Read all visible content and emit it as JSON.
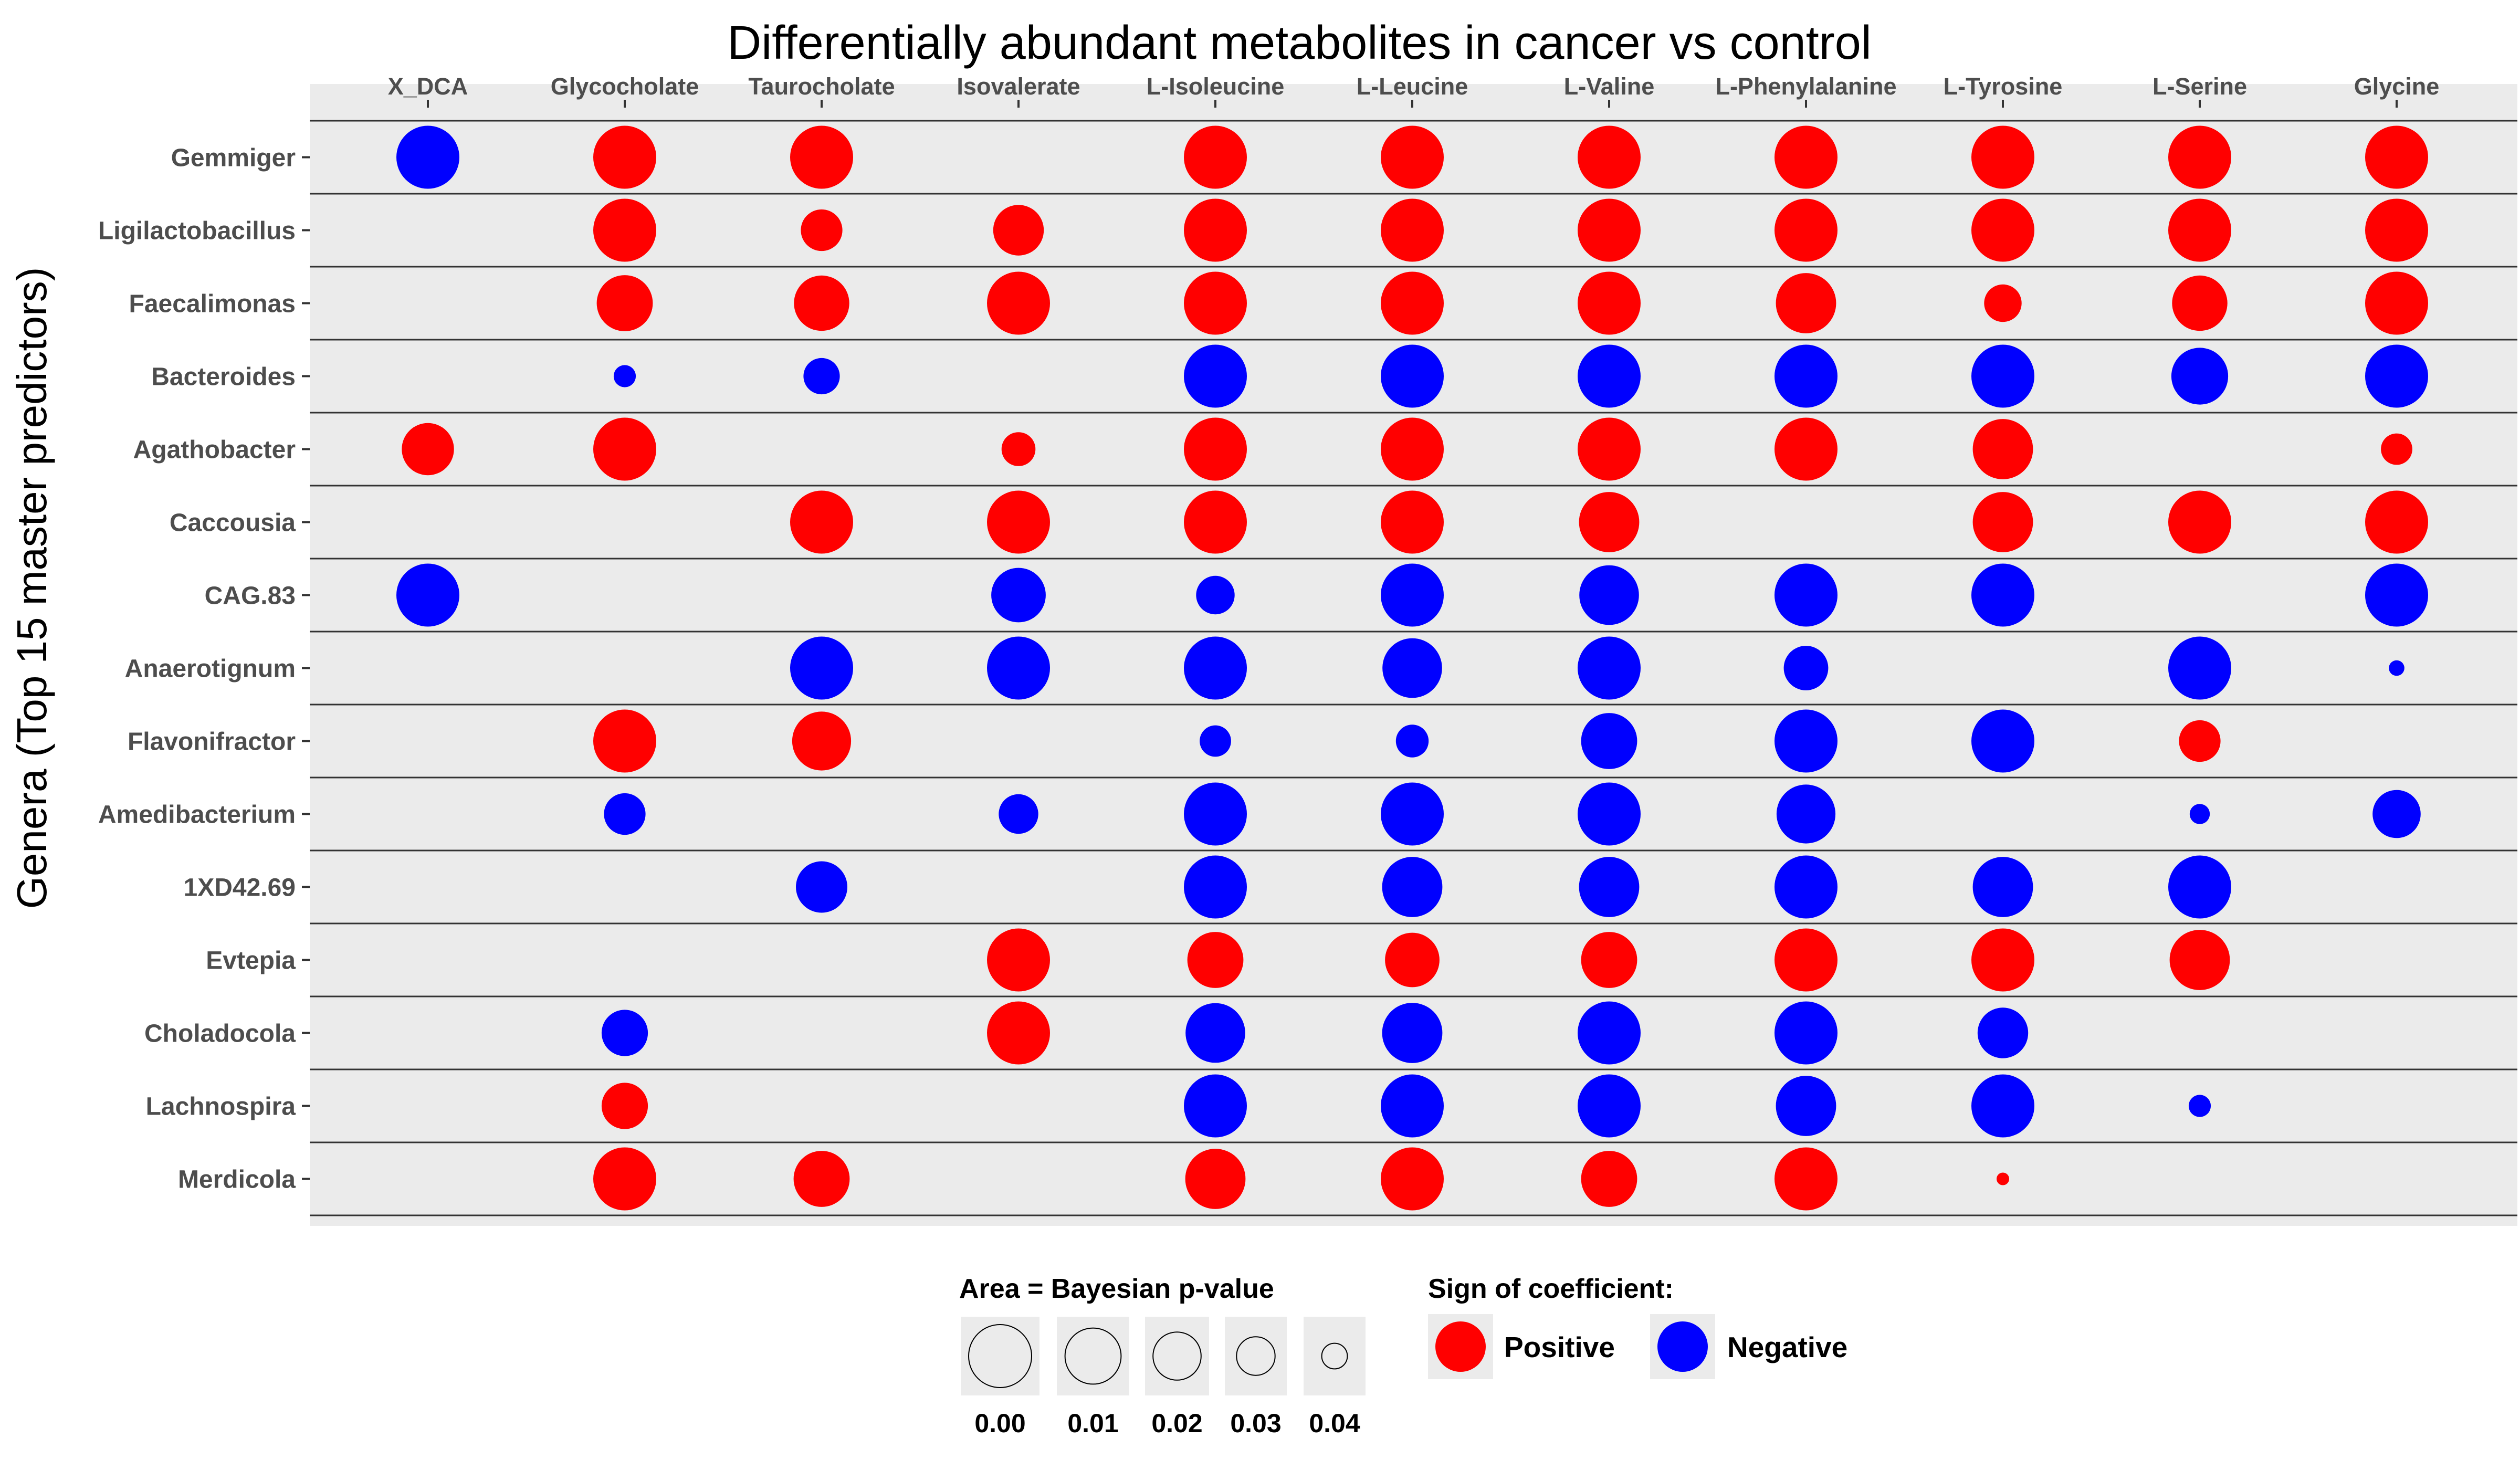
{
  "chart_data": {
    "type": "scatter",
    "title": "Differentially abundant metabolites in cancer vs control",
    "ylabel": "Genera (Top 15 master predictors)",
    "xlabel": "",
    "x_position": "top",
    "grid": true,
    "legend_placement": "bottom",
    "colors": {
      "positive": "#ff0000",
      "negative": "#0000ff",
      "panel": "#ebebeb",
      "rule": "#333333",
      "label": "#4d4d4d"
    },
    "columns": [
      "X_DCA",
      "Glycocholate",
      "Taurocholate",
      "Isovalerate",
      "L-Isoleucine",
      "L-Leucine",
      "L-Valine",
      "L-Phenylalanine",
      "L-Tyrosine",
      "L-Serine",
      "Glycine"
    ],
    "rows": [
      "Gemmiger",
      "Ligilactobacillus",
      "Faecalimonas",
      "Bacteroides",
      "Agathobacter",
      "Caccousia",
      "CAG.83",
      "Anaerotignum",
      "Flavonifractor",
      "Amedibacterium",
      "1XD42.69",
      "Evtepia",
      "Choladocola",
      "Lachnospira",
      "Merdicola"
    ],
    "size_legend": {
      "title": "Area = Bayesian p-value",
      "breaks": [
        0.0,
        0.01,
        0.02,
        0.03,
        0.04
      ],
      "labels": [
        "0.00",
        "0.01",
        "0.02",
        "0.03",
        "0.04"
      ]
    },
    "color_legend": {
      "title": "Sign of coefficient:",
      "items": [
        {
          "label": "Positive",
          "sign": "positive"
        },
        {
          "label": "Negative",
          "sign": "negative"
        }
      ]
    },
    "points": [
      {
        "row": "Gemmiger",
        "col": "X_DCA",
        "sign": "negative",
        "p": 0.0
      },
      {
        "row": "Gemmiger",
        "col": "Glycocholate",
        "sign": "positive",
        "p": 0.0
      },
      {
        "row": "Gemmiger",
        "col": "Taurocholate",
        "sign": "positive",
        "p": 0.0
      },
      {
        "row": "Gemmiger",
        "col": "L-Isoleucine",
        "sign": "positive",
        "p": 0.0
      },
      {
        "row": "Gemmiger",
        "col": "L-Leucine",
        "sign": "positive",
        "p": 0.0
      },
      {
        "row": "Gemmiger",
        "col": "L-Valine",
        "sign": "positive",
        "p": 0.0
      },
      {
        "row": "Gemmiger",
        "col": "L-Phenylalanine",
        "sign": "positive",
        "p": 0.0
      },
      {
        "row": "Gemmiger",
        "col": "L-Tyrosine",
        "sign": "positive",
        "p": 0.0
      },
      {
        "row": "Gemmiger",
        "col": "L-Serine",
        "sign": "positive",
        "p": 0.0
      },
      {
        "row": "Gemmiger",
        "col": "Glycine",
        "sign": "positive",
        "p": 0.0
      },
      {
        "row": "Ligilactobacillus",
        "col": "Glycocholate",
        "sign": "positive",
        "p": 0.0
      },
      {
        "row": "Ligilactobacillus",
        "col": "Taurocholate",
        "sign": "positive",
        "p": 0.027
      },
      {
        "row": "Ligilactobacillus",
        "col": "Isovalerate",
        "sign": "positive",
        "p": 0.017
      },
      {
        "row": "Ligilactobacillus",
        "col": "L-Isoleucine",
        "sign": "positive",
        "p": 0.0
      },
      {
        "row": "Ligilactobacillus",
        "col": "L-Leucine",
        "sign": "positive",
        "p": 0.0
      },
      {
        "row": "Ligilactobacillus",
        "col": "L-Valine",
        "sign": "positive",
        "p": 0.0
      },
      {
        "row": "Ligilactobacillus",
        "col": "L-Phenylalanine",
        "sign": "positive",
        "p": 0.0
      },
      {
        "row": "Ligilactobacillus",
        "col": "L-Tyrosine",
        "sign": "positive",
        "p": 0.0
      },
      {
        "row": "Ligilactobacillus",
        "col": "L-Serine",
        "sign": "positive",
        "p": 0.0
      },
      {
        "row": "Ligilactobacillus",
        "col": "Glycine",
        "sign": "positive",
        "p": 0.0
      },
      {
        "row": "Faecalimonas",
        "col": "Glycocholate",
        "sign": "positive",
        "p": 0.01
      },
      {
        "row": "Faecalimonas",
        "col": "Taurocholate",
        "sign": "positive",
        "p": 0.011
      },
      {
        "row": "Faecalimonas",
        "col": "Isovalerate",
        "sign": "positive",
        "p": 0.0
      },
      {
        "row": "Faecalimonas",
        "col": "L-Isoleucine",
        "sign": "positive",
        "p": 0.0
      },
      {
        "row": "Faecalimonas",
        "col": "L-Leucine",
        "sign": "positive",
        "p": 0.0
      },
      {
        "row": "Faecalimonas",
        "col": "L-Valine",
        "sign": "positive",
        "p": 0.0
      },
      {
        "row": "Faecalimonas",
        "col": "L-Phenylalanine",
        "sign": "positive",
        "p": 0.004
      },
      {
        "row": "Faecalimonas",
        "col": "L-Tyrosine",
        "sign": "positive",
        "p": 0.031
      },
      {
        "row": "Faecalimonas",
        "col": "L-Serine",
        "sign": "positive",
        "p": 0.011
      },
      {
        "row": "Faecalimonas",
        "col": "Glycine",
        "sign": "positive",
        "p": 0.0
      },
      {
        "row": "Bacteroides",
        "col": "Glycocholate",
        "sign": "negative",
        "p": 0.042
      },
      {
        "row": "Bacteroides",
        "col": "Taurocholate",
        "sign": "negative",
        "p": 0.032
      },
      {
        "row": "Bacteroides",
        "col": "L-Isoleucine",
        "sign": "negative",
        "p": 0.0
      },
      {
        "row": "Bacteroides",
        "col": "L-Leucine",
        "sign": "negative",
        "p": 0.0
      },
      {
        "row": "Bacteroides",
        "col": "L-Valine",
        "sign": "negative",
        "p": 0.0
      },
      {
        "row": "Bacteroides",
        "col": "L-Phenylalanine",
        "sign": "negative",
        "p": 0.0
      },
      {
        "row": "Bacteroides",
        "col": "L-Tyrosine",
        "sign": "negative",
        "p": 0.0
      },
      {
        "row": "Bacteroides",
        "col": "L-Serine",
        "sign": "negative",
        "p": 0.009
      },
      {
        "row": "Bacteroides",
        "col": "Glycine",
        "sign": "negative",
        "p": 0.0
      },
      {
        "row": "Agathobacter",
        "col": "X_DCA",
        "sign": "positive",
        "p": 0.015
      },
      {
        "row": "Agathobacter",
        "col": "Glycocholate",
        "sign": "positive",
        "p": 0.0
      },
      {
        "row": "Agathobacter",
        "col": "Isovalerate",
        "sign": "positive",
        "p": 0.034
      },
      {
        "row": "Agathobacter",
        "col": "L-Isoleucine",
        "sign": "positive",
        "p": 0.0
      },
      {
        "row": "Agathobacter",
        "col": "L-Leucine",
        "sign": "positive",
        "p": 0.0
      },
      {
        "row": "Agathobacter",
        "col": "L-Valine",
        "sign": "positive",
        "p": 0.0
      },
      {
        "row": "Agathobacter",
        "col": "L-Phenylalanine",
        "sign": "positive",
        "p": 0.0
      },
      {
        "row": "Agathobacter",
        "col": "L-Tyrosine",
        "sign": "positive",
        "p": 0.004
      },
      {
        "row": "Agathobacter",
        "col": "Glycine",
        "sign": "positive",
        "p": 0.036
      },
      {
        "row": "Caccousia",
        "col": "Taurocholate",
        "sign": "positive",
        "p": 0.0
      },
      {
        "row": "Caccousia",
        "col": "Isovalerate",
        "sign": "positive",
        "p": 0.0
      },
      {
        "row": "Caccousia",
        "col": "L-Isoleucine",
        "sign": "positive",
        "p": 0.0
      },
      {
        "row": "Caccousia",
        "col": "L-Leucine",
        "sign": "positive",
        "p": 0.0
      },
      {
        "row": "Caccousia",
        "col": "L-Valine",
        "sign": "positive",
        "p": 0.004
      },
      {
        "row": "Caccousia",
        "col": "L-Tyrosine",
        "sign": "positive",
        "p": 0.004
      },
      {
        "row": "Caccousia",
        "col": "L-Serine",
        "sign": "positive",
        "p": 0.0
      },
      {
        "row": "Caccousia",
        "col": "Glycine",
        "sign": "positive",
        "p": 0.0
      },
      {
        "row": "CAG.83",
        "col": "X_DCA",
        "sign": "negative",
        "p": 0.0
      },
      {
        "row": "CAG.83",
        "col": "Isovalerate",
        "sign": "negative",
        "p": 0.012
      },
      {
        "row": "CAG.83",
        "col": "L-Isoleucine",
        "sign": "negative",
        "p": 0.03
      },
      {
        "row": "CAG.83",
        "col": "L-Leucine",
        "sign": "negative",
        "p": 0.0
      },
      {
        "row": "CAG.83",
        "col": "L-Valine",
        "sign": "negative",
        "p": 0.005
      },
      {
        "row": "CAG.83",
        "col": "L-Phenylalanine",
        "sign": "negative",
        "p": 0.0
      },
      {
        "row": "CAG.83",
        "col": "L-Tyrosine",
        "sign": "negative",
        "p": 0.0
      },
      {
        "row": "CAG.83",
        "col": "Glycine",
        "sign": "negative",
        "p": 0.0
      },
      {
        "row": "Anaerotignum",
        "col": "Taurocholate",
        "sign": "negative",
        "p": 0.0
      },
      {
        "row": "Anaerotignum",
        "col": "Isovalerate",
        "sign": "negative",
        "p": 0.0
      },
      {
        "row": "Anaerotignum",
        "col": "L-Isoleucine",
        "sign": "negative",
        "p": 0.0
      },
      {
        "row": "Anaerotignum",
        "col": "L-Leucine",
        "sign": "negative",
        "p": 0.005
      },
      {
        "row": "Anaerotignum",
        "col": "L-Valine",
        "sign": "negative",
        "p": 0.0
      },
      {
        "row": "Anaerotignum",
        "col": "L-Phenylalanine",
        "sign": "negative",
        "p": 0.024
      },
      {
        "row": "Anaerotignum",
        "col": "L-Serine",
        "sign": "negative",
        "p": 0.0
      },
      {
        "row": "Anaerotignum",
        "col": "Glycine",
        "sign": "negative",
        "p": 0.045
      },
      {
        "row": "Flavonifractor",
        "col": "Glycocholate",
        "sign": "positive",
        "p": 0.0
      },
      {
        "row": "Flavonifractor",
        "col": "Taurocholate",
        "sign": "positive",
        "p": 0.006
      },
      {
        "row": "Flavonifractor",
        "col": "L-Isoleucine",
        "sign": "negative",
        "p": 0.036
      },
      {
        "row": "Flavonifractor",
        "col": "L-Leucine",
        "sign": "negative",
        "p": 0.035
      },
      {
        "row": "Flavonifractor",
        "col": "L-Valine",
        "sign": "negative",
        "p": 0.01
      },
      {
        "row": "Flavonifractor",
        "col": "L-Phenylalanine",
        "sign": "negative",
        "p": 0.0
      },
      {
        "row": "Flavonifractor",
        "col": "L-Tyrosine",
        "sign": "negative",
        "p": 0.0
      },
      {
        "row": "Flavonifractor",
        "col": "L-Serine",
        "sign": "positive",
        "p": 0.027
      },
      {
        "row": "Amedibacterium",
        "col": "Glycocholate",
        "sign": "negative",
        "p": 0.027
      },
      {
        "row": "Amedibacterium",
        "col": "Isovalerate",
        "sign": "negative",
        "p": 0.029
      },
      {
        "row": "Amedibacterium",
        "col": "L-Isoleucine",
        "sign": "negative",
        "p": 0.0
      },
      {
        "row": "Amedibacterium",
        "col": "L-Leucine",
        "sign": "negative",
        "p": 0.0
      },
      {
        "row": "Amedibacterium",
        "col": "L-Valine",
        "sign": "negative",
        "p": 0.0
      },
      {
        "row": "Amedibacterium",
        "col": "L-Phenylalanine",
        "sign": "negative",
        "p": 0.006
      },
      {
        "row": "Amedibacterium",
        "col": "L-Serine",
        "sign": "negative",
        "p": 0.043
      },
      {
        "row": "Amedibacterium",
        "col": "Glycine",
        "sign": "negative",
        "p": 0.02
      },
      {
        "row": "1XD42.69",
        "col": "Taurocholate",
        "sign": "negative",
        "p": 0.016
      },
      {
        "row": "1XD42.69",
        "col": "L-Isoleucine",
        "sign": "negative",
        "p": 0.0
      },
      {
        "row": "1XD42.69",
        "col": "L-Leucine",
        "sign": "negative",
        "p": 0.004
      },
      {
        "row": "1XD42.69",
        "col": "L-Valine",
        "sign": "negative",
        "p": 0.004
      },
      {
        "row": "1XD42.69",
        "col": "L-Phenylalanine",
        "sign": "negative",
        "p": 0.0
      },
      {
        "row": "1XD42.69",
        "col": "L-Tyrosine",
        "sign": "negative",
        "p": 0.004
      },
      {
        "row": "1XD42.69",
        "col": "L-Serine",
        "sign": "negative",
        "p": 0.0
      },
      {
        "row": "Evtepia",
        "col": "Isovalerate",
        "sign": "positive",
        "p": 0.0
      },
      {
        "row": "Evtepia",
        "col": "L-Isoleucine",
        "sign": "positive",
        "p": 0.01
      },
      {
        "row": "Evtepia",
        "col": "L-Leucine",
        "sign": "positive",
        "p": 0.012
      },
      {
        "row": "Evtepia",
        "col": "L-Valine",
        "sign": "positive",
        "p": 0.01
      },
      {
        "row": "Evtepia",
        "col": "L-Phenylalanine",
        "sign": "positive",
        "p": 0.0
      },
      {
        "row": "Evtepia",
        "col": "L-Tyrosine",
        "sign": "positive",
        "p": 0.0
      },
      {
        "row": "Evtepia",
        "col": "L-Serine",
        "sign": "positive",
        "p": 0.004
      },
      {
        "row": "Choladocola",
        "col": "Glycocholate",
        "sign": "negative",
        "p": 0.022
      },
      {
        "row": "Choladocola",
        "col": "Isovalerate",
        "sign": "positive",
        "p": 0.0
      },
      {
        "row": "Choladocola",
        "col": "L-Isoleucine",
        "sign": "negative",
        "p": 0.005
      },
      {
        "row": "Choladocola",
        "col": "L-Leucine",
        "sign": "negative",
        "p": 0.004
      },
      {
        "row": "Choladocola",
        "col": "L-Valine",
        "sign": "negative",
        "p": 0.0
      },
      {
        "row": "Choladocola",
        "col": "L-Phenylalanine",
        "sign": "negative",
        "p": 0.0
      },
      {
        "row": "Choladocola",
        "col": "L-Tyrosine",
        "sign": "negative",
        "p": 0.017
      },
      {
        "row": "Lachnospira",
        "col": "Glycocholate",
        "sign": "positive",
        "p": 0.022
      },
      {
        "row": "Lachnospira",
        "col": "L-Isoleucine",
        "sign": "negative",
        "p": 0.0
      },
      {
        "row": "Lachnospira",
        "col": "L-Leucine",
        "sign": "negative",
        "p": 0.0
      },
      {
        "row": "Lachnospira",
        "col": "L-Valine",
        "sign": "negative",
        "p": 0.0
      },
      {
        "row": "Lachnospira",
        "col": "L-Phenylalanine",
        "sign": "negative",
        "p": 0.004
      },
      {
        "row": "Lachnospira",
        "col": "L-Tyrosine",
        "sign": "negative",
        "p": 0.0
      },
      {
        "row": "Lachnospira",
        "col": "L-Serine",
        "sign": "negative",
        "p": 0.042
      },
      {
        "row": "Merdicola",
        "col": "Glycocholate",
        "sign": "positive",
        "p": 0.0
      },
      {
        "row": "Merdicola",
        "col": "Taurocholate",
        "sign": "positive",
        "p": 0.01
      },
      {
        "row": "Merdicola",
        "col": "L-Isoleucine",
        "sign": "positive",
        "p": 0.004
      },
      {
        "row": "Merdicola",
        "col": "L-Leucine",
        "sign": "positive",
        "p": 0.0
      },
      {
        "row": "Merdicola",
        "col": "L-Valine",
        "sign": "positive",
        "p": 0.01
      },
      {
        "row": "Merdicola",
        "col": "L-Phenylalanine",
        "sign": "positive",
        "p": 0.0
      },
      {
        "row": "Merdicola",
        "col": "L-Tyrosine",
        "sign": "positive",
        "p": 0.046
      }
    ]
  }
}
